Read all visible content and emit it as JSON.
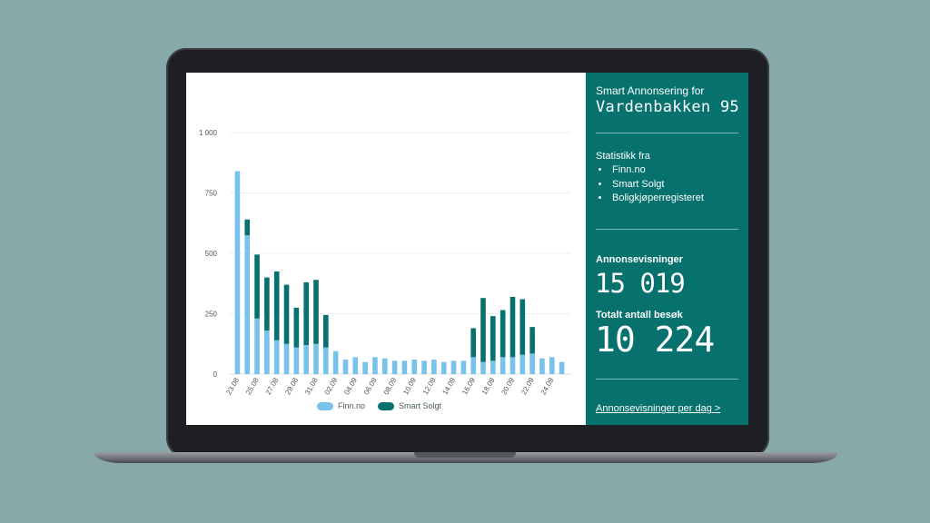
{
  "panel": {
    "heading": "Smart Annonsering for",
    "address": "Vardenbakken 95",
    "sources_label": "Statistikk fra",
    "sources": [
      "Finn.no",
      "Smart Solgt",
      "Boligkjøperregisteret"
    ],
    "views_label": "Annonsevisninger",
    "views_value": "15 019",
    "visits_label": "Totalt antall besøk",
    "visits_value": "10 224",
    "per_day_link": "Annonsevisninger per dag >"
  },
  "colors": {
    "background": "#88a9a9",
    "panel": "#06716d",
    "finn": "#78c2ee",
    "smart_solgt": "#06716d"
  },
  "chart_data": {
    "type": "bar",
    "stacked": true,
    "ylim": [
      0,
      1000
    ],
    "y_ticks": [
      "0",
      "250",
      "500",
      "750",
      "1 000"
    ],
    "y_tick_values": [
      0,
      250,
      500,
      750,
      1000
    ],
    "grid": true,
    "legend_position": "bottom",
    "categories": [
      "23.08",
      "24.08",
      "25.08",
      "26.08",
      "27.08",
      "28.08",
      "29.08",
      "30.08",
      "31.08",
      "01.09",
      "02.09",
      "03.09",
      "04.09",
      "05.09",
      "06.09",
      "07.09",
      "08.09",
      "09.09",
      "10.09",
      "11.09",
      "12.09",
      "13.09",
      "14.09",
      "15.09",
      "16.09",
      "17.09",
      "18.09",
      "19.09",
      "20.09",
      "21.09",
      "22.09",
      "23.09",
      "24.09",
      "25.09"
    ],
    "x_tick_labels": [
      "23.08",
      "25.08",
      "27.08",
      "29.08",
      "31.08",
      "02.09",
      "04.09",
      "06.09",
      "08.09",
      "10.09",
      "12.09",
      "14.09",
      "16.09",
      "18.09",
      "20.09",
      "22.09",
      "24.09"
    ],
    "series": [
      {
        "name": "Finn.no",
        "color": "#78c2ee",
        "values": [
          840,
          575,
          230,
          180,
          140,
          125,
          110,
          120,
          125,
          110,
          95,
          60,
          70,
          50,
          70,
          65,
          55,
          55,
          60,
          55,
          60,
          50,
          55,
          55,
          70,
          50,
          55,
          70,
          70,
          80,
          85,
          65,
          70,
          50
        ]
      },
      {
        "name": "Smart Solgt",
        "color": "#06716d",
        "values": [
          0,
          65,
          265,
          220,
          285,
          245,
          165,
          260,
          265,
          135,
          0,
          0,
          0,
          0,
          0,
          0,
          0,
          0,
          0,
          0,
          0,
          0,
          0,
          0,
          120,
          265,
          185,
          195,
          250,
          230,
          110,
          0,
          0,
          0
        ]
      }
    ]
  }
}
